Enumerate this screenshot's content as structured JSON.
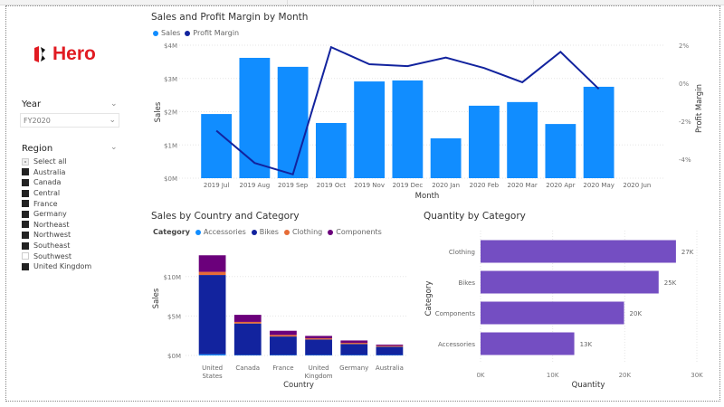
{
  "logo": {
    "text": "Hero",
    "color": "#e11b22"
  },
  "slicers": {
    "year": {
      "title": "Year",
      "selected": "FY2020"
    },
    "region": {
      "title": "Region",
      "items": [
        {
          "label": "Select all",
          "state": "partial"
        },
        {
          "label": "Australia",
          "state": "checked"
        },
        {
          "label": "Canada",
          "state": "checked"
        },
        {
          "label": "Central",
          "state": "checked"
        },
        {
          "label": "France",
          "state": "checked"
        },
        {
          "label": "Germany",
          "state": "checked"
        },
        {
          "label": "Northeast",
          "state": "checked"
        },
        {
          "label": "Northwest",
          "state": "checked"
        },
        {
          "label": "Southeast",
          "state": "checked"
        },
        {
          "label": "Southwest",
          "state": "unchecked"
        },
        {
          "label": "United Kingdom",
          "state": "checked"
        }
      ]
    }
  },
  "chart_data": [
    {
      "type": "bar+line",
      "title": "Sales and Profit Margin by Month",
      "legend": [
        "Sales",
        "Profit Margin"
      ],
      "colors": {
        "Sales": "#118dff",
        "Profit Margin": "#12239e"
      },
      "xlabel": "Month",
      "ylabel": "Sales",
      "y2label": "Profit Margin",
      "categories": [
        "2019 Jul",
        "2019 Aug",
        "2019 Sep",
        "2019 Oct",
        "2019 Nov",
        "2019 Dec",
        "2020 Jan",
        "2020 Feb",
        "2020 Mar",
        "2020 Apr",
        "2020 May",
        "2020 Jun"
      ],
      "yticks": [
        "$0M",
        "$1M",
        "$2M",
        "$3M",
        "$4M"
      ],
      "ylim": [
        0,
        4
      ],
      "y2ticks": [
        "-4%",
        "-2%",
        "0%",
        "2%"
      ],
      "y2lim": [
        -5,
        2
      ],
      "sales_millions": [
        1.93,
        3.62,
        3.35,
        1.66,
        2.91,
        2.94,
        1.2,
        2.18,
        2.29,
        1.63,
        2.75,
        null
      ],
      "profit_margin_pct": [
        -2.5,
        -4.2,
        -4.8,
        1.9,
        1.0,
        0.9,
        1.35,
        0.8,
        0.05,
        1.65,
        -0.3,
        null
      ]
    },
    {
      "type": "stacked-bar",
      "title": "Sales by Country and Category",
      "legend_title": "Category",
      "xlabel": "Country",
      "ylabel": "Sales",
      "categories": [
        "United States",
        "Canada",
        "France",
        "United Kingdom",
        "Germany",
        "Australia"
      ],
      "yticks": [
        "$0M",
        "$5M",
        "$10M"
      ],
      "ylim": [
        0,
        13
      ],
      "series": [
        {
          "name": "Accessories",
          "color": "#118dff",
          "values": [
            0.15,
            0.05,
            0.05,
            0.05,
            0.05,
            0.05
          ]
        },
        {
          "name": "Bikes",
          "color": "#12239e",
          "values": [
            10.05,
            4.0,
            2.35,
            1.97,
            1.4,
            1.05
          ]
        },
        {
          "name": "Clothing",
          "color": "#e66c37",
          "values": [
            0.4,
            0.2,
            0.2,
            0.15,
            0.15,
            0.12
          ]
        },
        {
          "name": "Components",
          "color": "#6b007b",
          "values": [
            2.1,
            0.9,
            0.53,
            0.31,
            0.3,
            0.15
          ]
        }
      ]
    },
    {
      "type": "hbar",
      "title": "Quantity by Category",
      "xlabel": "Quantity",
      "ylabel": "Category",
      "categories": [
        "Clothing",
        "Bikes",
        "Components",
        "Accessories"
      ],
      "values": [
        27100,
        24700,
        19900,
        13000
      ],
      "labels": [
        "27K",
        "25K",
        "20K",
        "13K"
      ],
      "xticks": [
        "0K",
        "10K",
        "20K",
        "30K"
      ],
      "xlim": [
        0,
        30000
      ],
      "color": "#744ec2"
    }
  ]
}
